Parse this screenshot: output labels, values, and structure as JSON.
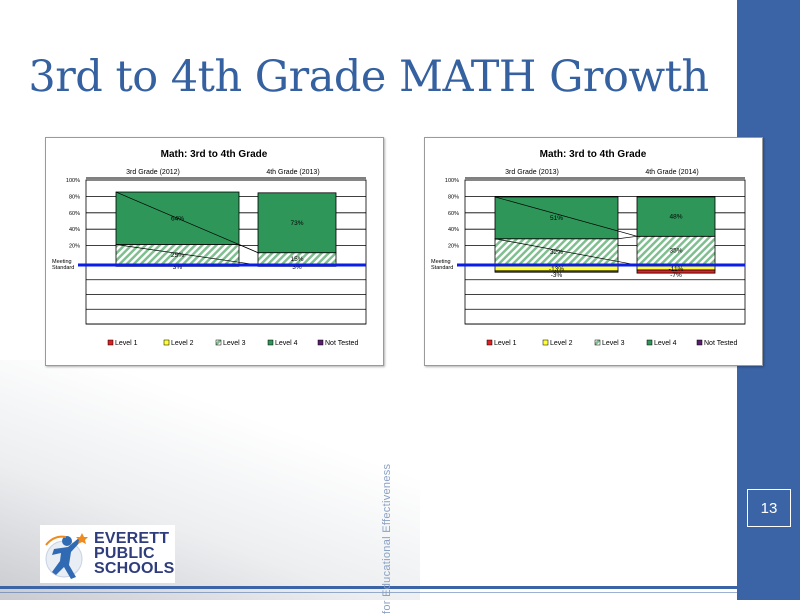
{
  "slide": {
    "title": "3rd to 4th Grade MATH Growth",
    "page_number": "13",
    "side_text": "for Educational Effectiveness",
    "logo_lines": [
      "EVERETT",
      "PUBLIC",
      "SCHOOLS"
    ]
  },
  "colors": {
    "accent": "#3b64a6",
    "level1": "#e02020",
    "level2": "#ffff33",
    "level3": "#b8dcb8",
    "level4": "#2e9659",
    "not_tested": "#5a1e6e",
    "meeting_standard": "#0a1ee6"
  },
  "chart_data": [
    {
      "type": "bar",
      "stacked": "diverging",
      "title": "Math: 3rd to 4th Grade",
      "categories": [
        "3rd Grade (2012)",
        "4th Grade (2013)"
      ],
      "y_ticks": [
        "100%",
        "80%",
        "60%",
        "40%",
        "20%"
      ],
      "baseline_label": [
        "Meeting",
        "Standard"
      ],
      "ylim": [
        -80,
        100
      ],
      "series": [
        {
          "name": "Level 1",
          "values": [
            -3,
            -3
          ]
        },
        {
          "name": "Level 2",
          "values": [
            0,
            0
          ]
        },
        {
          "name": "Level 3",
          "values": [
            25,
            15
          ]
        },
        {
          "name": "Level 4",
          "values": [
            64,
            73
          ]
        },
        {
          "name": "Not Tested",
          "values": [
            0,
            0
          ]
        }
      ],
      "data_labels": [
        {
          "series": "Level 4",
          "category": 0,
          "text": "64%"
        },
        {
          "series": "Level 4",
          "category": 1,
          "text": "73%"
        },
        {
          "series": "Level 3",
          "category": 0,
          "text": "25%"
        },
        {
          "series": "Level 3",
          "category": 1,
          "text": "15%"
        },
        {
          "series": "Level 1",
          "category": 0,
          "text": "3%"
        },
        {
          "series": "Level 1",
          "category": 1,
          "text": "3%"
        }
      ],
      "legend": [
        "Level 1",
        "Level 2",
        "Level 3",
        "Level 4",
        "Not Tested"
      ],
      "legend_position": "bottom"
    },
    {
      "type": "bar",
      "stacked": "diverging",
      "title": "Math: 3rd to 4th Grade",
      "categories": [
        "3rd Grade (2013)",
        "4th Grade (2014)"
      ],
      "y_ticks": [
        "100%",
        "80%",
        "60%",
        "40%",
        "20%"
      ],
      "baseline_label": [
        "Meeting",
        "Standard"
      ],
      "ylim": [
        -80,
        100
      ],
      "series": [
        {
          "name": "Level 1",
          "values": [
            -3,
            -7
          ]
        },
        {
          "name": "Level 2",
          "values": [
            -13,
            -11
          ]
        },
        {
          "name": "Level 3",
          "values": [
            32,
            35
          ]
        },
        {
          "name": "Level 4",
          "values": [
            51,
            48
          ]
        },
        {
          "name": "Not Tested",
          "values": [
            0,
            0
          ]
        }
      ],
      "data_labels": [
        {
          "series": "Level 4",
          "category": 0,
          "text": "51%"
        },
        {
          "series": "Level 4",
          "category": 1,
          "text": "48%"
        },
        {
          "series": "Level 3",
          "category": 0,
          "text": "32%"
        },
        {
          "series": "Level 3",
          "category": 1,
          "text": "35%"
        },
        {
          "series": "Level 2",
          "category": 0,
          "text": "-13%"
        },
        {
          "series": "Level 2",
          "category": 1,
          "text": "-11%"
        },
        {
          "series": "Level 1",
          "category": 0,
          "text": "-3%"
        },
        {
          "series": "Level 1",
          "category": 1,
          "text": "-7%"
        }
      ],
      "legend": [
        "Level 1",
        "Level 2",
        "Level 3",
        "Level 4",
        "Not Tested"
      ],
      "legend_position": "bottom"
    }
  ]
}
